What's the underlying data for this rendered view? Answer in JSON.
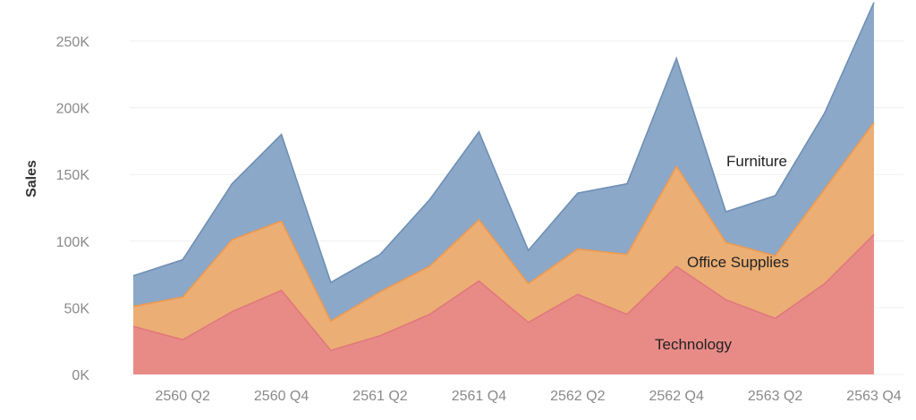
{
  "chart_data": {
    "type": "area",
    "stacked": true,
    "title": "",
    "xlabel": "",
    "ylabel": "Sales",
    "ylim": [
      0,
      280000
    ],
    "yticks": [
      0,
      50000,
      100000,
      150000,
      200000,
      250000
    ],
    "ytick_labels": [
      "0K",
      "50K",
      "100K",
      "150K",
      "200K",
      "250K"
    ],
    "x": [
      "2560 Q1",
      "2560 Q2",
      "2560 Q3",
      "2560 Q4",
      "2561 Q1",
      "2561 Q2",
      "2561 Q3",
      "2561 Q4",
      "2562 Q1",
      "2562 Q2",
      "2562 Q3",
      "2562 Q4",
      "2563 Q1",
      "2563 Q2",
      "2563 Q3",
      "2563 Q4"
    ],
    "xtick_labels": [
      "2560 Q2",
      "2560 Q4",
      "2561 Q2",
      "2561 Q4",
      "2562 Q2",
      "2562 Q4",
      "2563 Q2",
      "2563 Q4"
    ],
    "grid": true,
    "legend": "none",
    "series": [
      {
        "name": "Technology",
        "color": "#e8878a",
        "values": [
          36000,
          26000,
          47000,
          63000,
          18000,
          29000,
          45000,
          70000,
          39000,
          60000,
          45000,
          81000,
          56000,
          42000,
          68000,
          105000
        ]
      },
      {
        "name": "Office Supplies",
        "color": "#f5ae6c",
        "values": [
          15000,
          32000,
          54000,
          52000,
          22000,
          33000,
          36000,
          46000,
          29000,
          34000,
          45000,
          75000,
          43000,
          47000,
          71000,
          84000
        ]
      },
      {
        "name": "Furniture",
        "color": "#7f9fc2",
        "values": [
          23000,
          28000,
          42000,
          65000,
          29000,
          28000,
          50000,
          66000,
          25000,
          42000,
          53000,
          81000,
          23000,
          45000,
          57000,
          90000
        ]
      }
    ]
  }
}
